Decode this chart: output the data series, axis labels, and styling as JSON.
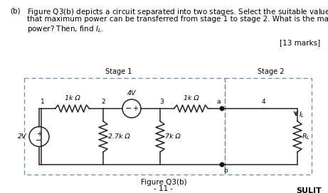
{
  "bg_color": "#ffffff",
  "stage1_label": "Stage 1",
  "stage2_label": "Stage 2",
  "figure_label": "Figure Q3(b)",
  "page_label": "- 11 -",
  "sulit_text": "SULIT",
  "marks_text": "[13 marks]",
  "box1_color": "#7799cc",
  "box2_color": "#7799cc",
  "wire_color": "#222222",
  "dot_color": "#111111",
  "text_line1": "(b)   Figure Q3(b) depicts a circuit separated into two stages. Select the suitable value of $R_L$ so",
  "text_line2": "that maximum power can be transferred from stage 1 to stage 2. What is the maximum",
  "text_line3": "power? Then, find $I_L$.",
  "font_size_body": 7.5,
  "font_size_circuit": 6.8
}
